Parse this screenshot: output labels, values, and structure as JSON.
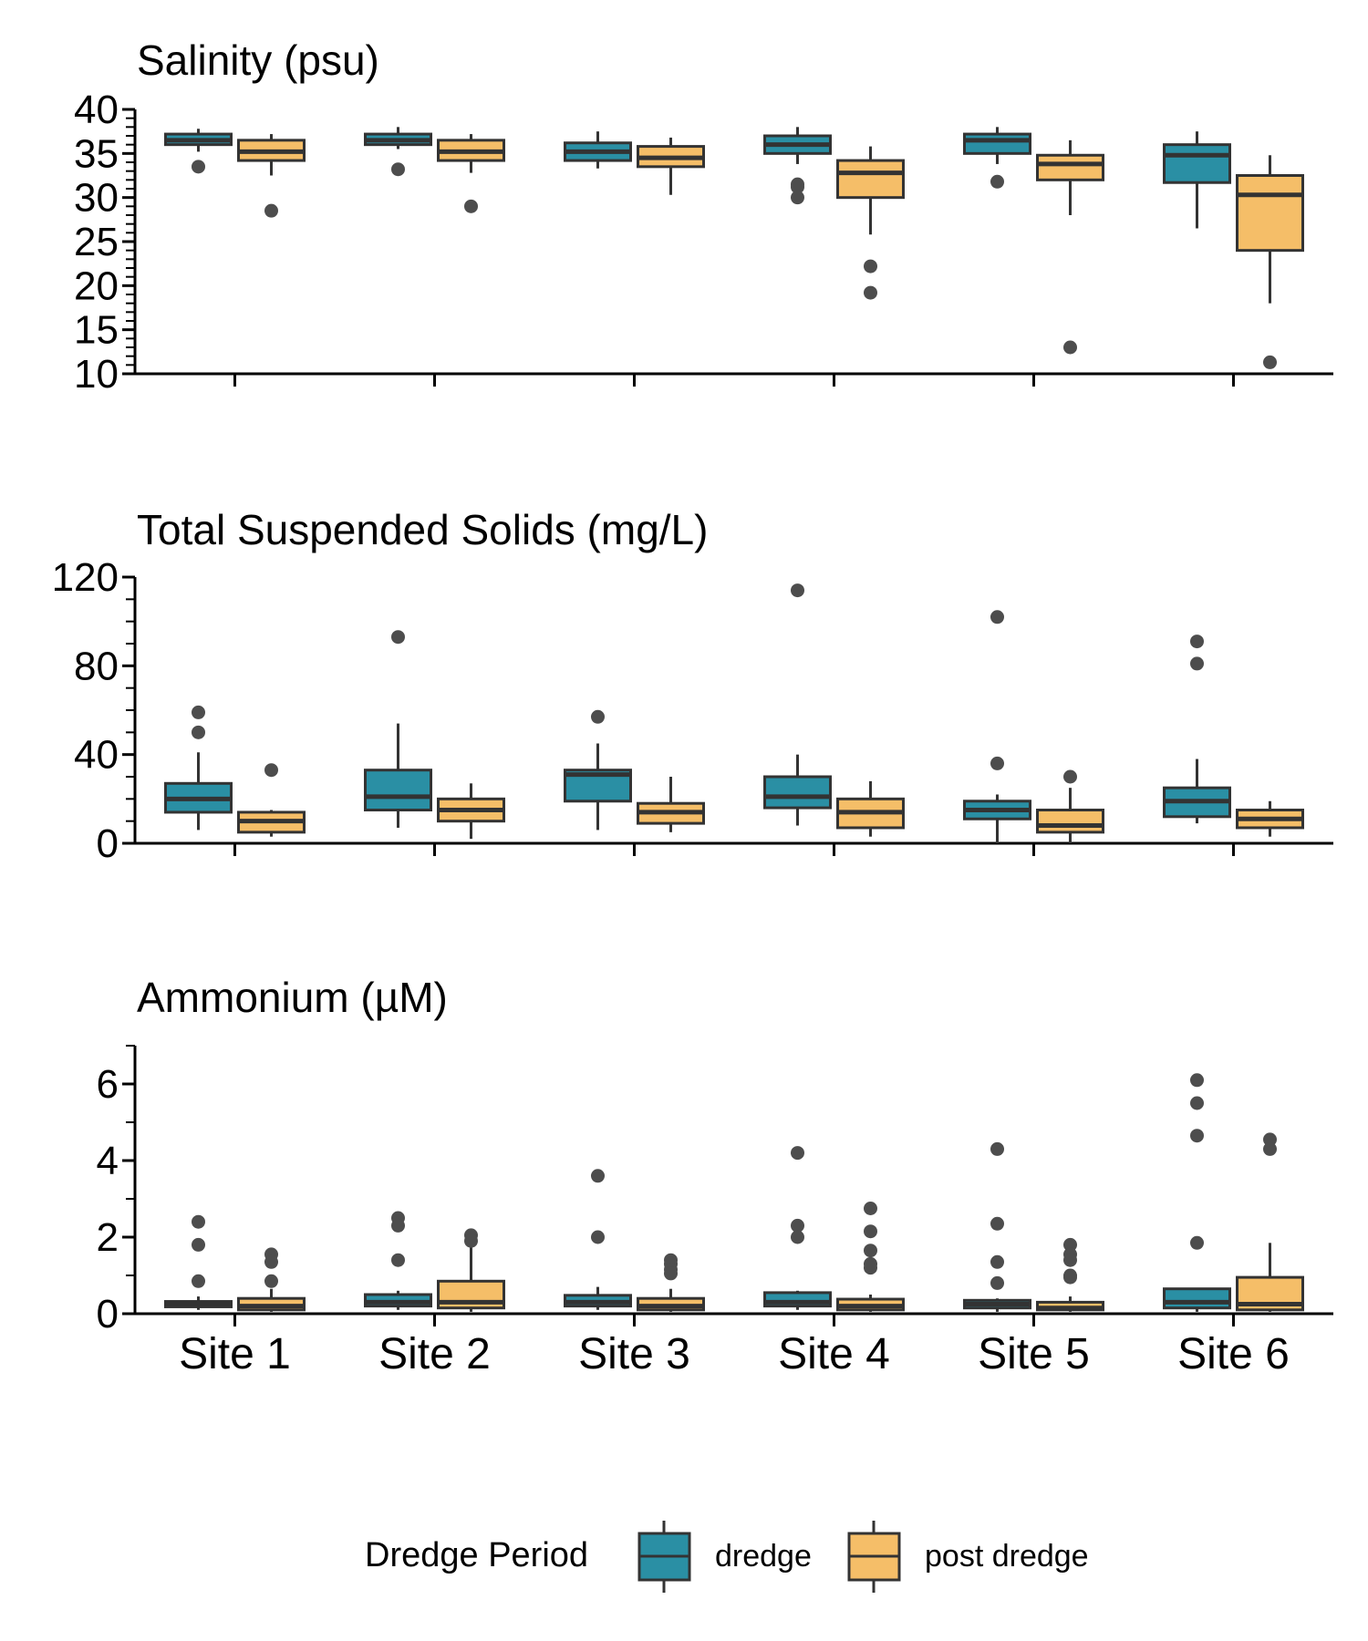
{
  "chart_data": [
    {
      "type": "box",
      "title": "Salinity (psu)",
      "xlabel": "",
      "ylabel": "",
      "categories": [
        "Site 1",
        "Site 2",
        "Site 3",
        "Site 4",
        "Site 5",
        "Site 6"
      ],
      "ylim": [
        10,
        40
      ],
      "yticks": [
        "10",
        "15",
        "20",
        "25",
        "30",
        "35",
        "40"
      ],
      "series": [
        {
          "name": "dredge",
          "boxes": [
            {
              "min": 35.2,
              "q1": 36.0,
              "median": 36.5,
              "q3": 37.2,
              "max": 37.8,
              "outliers": [
                33.5
              ]
            },
            {
              "min": 35.5,
              "q1": 36.0,
              "median": 36.5,
              "q3": 37.2,
              "max": 38.0,
              "outliers": [
                33.2
              ]
            },
            {
              "min": 33.3,
              "q1": 34.2,
              "median": 35.2,
              "q3": 36.2,
              "max": 37.5,
              "outliers": []
            },
            {
              "min": 33.8,
              "q1": 35.0,
              "median": 36.0,
              "q3": 37.0,
              "max": 38.0,
              "outliers": [
                31.5,
                31.2,
                30.0
              ]
            },
            {
              "min": 33.8,
              "q1": 35.0,
              "median": 36.5,
              "q3": 37.2,
              "max": 38.0,
              "outliers": [
                31.8
              ]
            },
            {
              "min": 26.5,
              "q1": 31.7,
              "median": 34.8,
              "q3": 36.0,
              "max": 37.5,
              "outliers": []
            }
          ]
        },
        {
          "name": "post dredge",
          "boxes": [
            {
              "min": 32.5,
              "q1": 34.2,
              "median": 35.2,
              "q3": 36.5,
              "max": 37.2,
              "outliers": [
                28.5
              ]
            },
            {
              "min": 32.8,
              "q1": 34.2,
              "median": 35.2,
              "q3": 36.5,
              "max": 37.2,
              "outliers": [
                29.0
              ]
            },
            {
              "min": 30.3,
              "q1": 33.5,
              "median": 34.5,
              "q3": 35.8,
              "max": 36.8,
              "outliers": []
            },
            {
              "min": 25.8,
              "q1": 30.0,
              "median": 32.8,
              "q3": 34.2,
              "max": 35.8,
              "outliers": [
                22.2,
                19.2
              ]
            },
            {
              "min": 28.0,
              "q1": 32.0,
              "median": 33.8,
              "q3": 34.8,
              "max": 36.5,
              "outliers": [
                13.0
              ]
            },
            {
              "min": 18.0,
              "q1": 24.0,
              "median": 30.3,
              "q3": 32.5,
              "max": 34.8,
              "outliers": [
                11.3
              ]
            }
          ]
        }
      ]
    },
    {
      "type": "box",
      "title": "Total Suspended Solids (mg/L)",
      "xlabel": "",
      "ylabel": "",
      "categories": [
        "Site 1",
        "Site 2",
        "Site 3",
        "Site 4",
        "Site 5",
        "Site 6"
      ],
      "ylim": [
        0,
        120
      ],
      "yticks": [
        "0",
        "40",
        "80",
        "120"
      ],
      "series": [
        {
          "name": "dredge",
          "boxes": [
            {
              "min": 6,
              "q1": 14,
              "median": 20,
              "q3": 27,
              "max": 41,
              "outliers": [
                59,
                50
              ]
            },
            {
              "min": 7,
              "q1": 15,
              "median": 21,
              "q3": 33,
              "max": 54,
              "outliers": [
                93
              ]
            },
            {
              "min": 6,
              "q1": 19,
              "median": 31,
              "q3": 33,
              "max": 45,
              "outliers": [
                57
              ]
            },
            {
              "min": 8,
              "q1": 16,
              "median": 21,
              "q3": 30,
              "max": 40,
              "outliers": [
                114
              ]
            },
            {
              "min": 0,
              "q1": 11,
              "median": 15,
              "q3": 19,
              "max": 22,
              "outliers": [
                102,
                36
              ]
            },
            {
              "min": 9,
              "q1": 12,
              "median": 19,
              "q3": 25,
              "max": 38,
              "outliers": [
                91,
                81
              ]
            }
          ]
        },
        {
          "name": "post dredge",
          "boxes": [
            {
              "min": 3,
              "q1": 5,
              "median": 10,
              "q3": 14,
              "max": 15,
              "outliers": [
                33
              ]
            },
            {
              "min": 2,
              "q1": 10,
              "median": 15,
              "q3": 20,
              "max": 27,
              "outliers": []
            },
            {
              "min": 5,
              "q1": 9,
              "median": 14,
              "q3": 18,
              "max": 30,
              "outliers": []
            },
            {
              "min": 3,
              "q1": 7,
              "median": 14,
              "q3": 20,
              "max": 28,
              "outliers": []
            },
            {
              "min": 0,
              "q1": 5,
              "median": 8,
              "q3": 15,
              "max": 25,
              "outliers": [
                30
              ]
            },
            {
              "min": 3,
              "q1": 7,
              "median": 11,
              "q3": 15,
              "max": 19,
              "outliers": []
            }
          ]
        }
      ]
    },
    {
      "type": "box",
      "title": "Ammonium (µM)",
      "xlabel": "",
      "ylabel": "",
      "categories": [
        "Site 1",
        "Site 2",
        "Site 3",
        "Site 4",
        "Site 5",
        "Site 6"
      ],
      "ylim": [
        0,
        7
      ],
      "yticks": [
        "0",
        "2",
        "4",
        "6"
      ],
      "series": [
        {
          "name": "dredge",
          "boxes": [
            {
              "min": 0.1,
              "q1": 0.18,
              "median": 0.25,
              "q3": 0.32,
              "max": 0.45,
              "outliers": [
                2.4,
                1.8,
                0.85
              ]
            },
            {
              "min": 0.1,
              "q1": 0.2,
              "median": 0.3,
              "q3": 0.5,
              "max": 0.6,
              "outliers": [
                2.5,
                2.3,
                1.4
              ]
            },
            {
              "min": 0.1,
              "q1": 0.2,
              "median": 0.3,
              "q3": 0.48,
              "max": 0.7,
              "outliers": [
                3.6,
                2.0
              ]
            },
            {
              "min": 0.1,
              "q1": 0.2,
              "median": 0.3,
              "q3": 0.55,
              "max": 0.6,
              "outliers": [
                4.2,
                2.3,
                2.0
              ]
            },
            {
              "min": 0.05,
              "q1": 0.15,
              "median": 0.25,
              "q3": 0.35,
              "max": 0.4,
              "outliers": [
                4.3,
                2.35,
                1.35,
                0.8
              ]
            },
            {
              "min": 0.05,
              "q1": 0.15,
              "median": 0.3,
              "q3": 0.65,
              "max": 0.65,
              "outliers": [
                6.1,
                5.5,
                4.65,
                1.85
              ]
            }
          ]
        },
        {
          "name": "post dredge",
          "boxes": [
            {
              "min": 0.05,
              "q1": 0.1,
              "median": 0.2,
              "q3": 0.4,
              "max": 0.65,
              "outliers": [
                1.55,
                1.35,
                0.85
              ]
            },
            {
              "min": 0.05,
              "q1": 0.15,
              "median": 0.3,
              "q3": 0.85,
              "max": 1.8,
              "outliers": [
                2.05,
                1.9
              ]
            },
            {
              "min": 0.05,
              "q1": 0.1,
              "median": 0.2,
              "q3": 0.4,
              "max": 0.65,
              "outliers": [
                1.4,
                1.3,
                1.15,
                1.05
              ]
            },
            {
              "min": 0.05,
              "q1": 0.1,
              "median": 0.2,
              "q3": 0.38,
              "max": 0.5,
              "outliers": [
                2.75,
                2.15,
                1.65,
                1.3,
                1.2
              ]
            },
            {
              "min": 0.05,
              "q1": 0.1,
              "median": 0.15,
              "q3": 0.3,
              "max": 0.45,
              "outliers": [
                1.8,
                1.55,
                1.4,
                1.0,
                0.95
              ]
            },
            {
              "min": 0.05,
              "q1": 0.1,
              "median": 0.25,
              "q3": 0.95,
              "max": 1.85,
              "outliers": [
                4.55,
                4.3
              ]
            }
          ]
        }
      ]
    }
  ],
  "legend": {
    "title": "Dredge Period",
    "placement": "bottom",
    "items": [
      {
        "label": "dredge",
        "color": "#2a8fa4"
      },
      {
        "label": "post dredge",
        "color": "#f5be68"
      }
    ]
  },
  "colors": {
    "dredge": "#2a8fa4",
    "post dredge": "#f5be68",
    "outline": "#333333",
    "outlier": "#4d4d4d"
  }
}
